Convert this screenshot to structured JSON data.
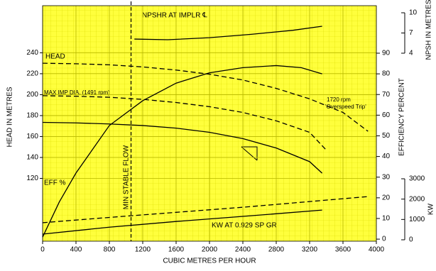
{
  "chart_data": {
    "type": "line",
    "x_label": "CUBIC METRES PER HOUR",
    "y_label": "HEAD IN METRES",
    "y2_label": "EFFICIENCY PERCENT",
    "y3_label": "NPSH IN METRES",
    "y4_label": "KW",
    "xlim": [
      0,
      4000
    ],
    "xticks": [
      0,
      400,
      800,
      1200,
      1600,
      2000,
      2400,
      2800,
      3200,
      3600,
      4000
    ],
    "ylim": [
      60,
      285
    ],
    "yticks": [
      120,
      140,
      160,
      180,
      200,
      220,
      240
    ],
    "y2lim": [
      -1,
      113
    ],
    "y2ticks": [
      0,
      10,
      20,
      30,
      40,
      50,
      60,
      70,
      80,
      90
    ],
    "y3lim": [
      4,
      10
    ],
    "y3ticks": [
      4,
      7,
      10
    ],
    "y4lim": [
      0,
      3000
    ],
    "y4ticks": [
      0,
      1000,
      2000,
      3000
    ],
    "grid": true,
    "background": "#ffff3c",
    "color": "#000000",
    "min_flow": {
      "x": 1060,
      "label": "MIN STABLE FLOW"
    },
    "annotations": {
      "head": "HEAD",
      "max_dia": "MAX IMP DIA. (1491 rpm)",
      "overspeed_1": "1720 rpm",
      "overspeed_2": "'Overspeed Trip'",
      "eff": "EFF %",
      "npshr": "NPSHR AT IMPLR ℄",
      "kw": "KW AT 0.929 SP GR"
    },
    "series": [
      {
        "name": "1720 rpm",
        "axis": "y",
        "dash": true,
        "x": [
          0,
          400,
          800,
          1200,
          1600,
          2000,
          2400,
          2800,
          3200,
          3600,
          3900
        ],
        "values": [
          230,
          229.5,
          228.5,
          226.5,
          223.5,
          219.5,
          214,
          206,
          196,
          183,
          165
        ]
      },
      {
        "name": "MAX IMP DIA",
        "axis": "y",
        "dash": true,
        "x": [
          0,
          400,
          800,
          1200,
          1600,
          2000,
          2400,
          2800,
          3200,
          3400
        ],
        "values": [
          199,
          198.5,
          197.5,
          195.5,
          192.5,
          188.5,
          183,
          175,
          164,
          147
        ]
      },
      {
        "name": "HEAD",
        "axis": "y",
        "dash": false,
        "x": [
          0,
          400,
          800,
          1200,
          1600,
          2000,
          2400,
          2800,
          3200,
          3350
        ],
        "values": [
          173.5,
          173,
          172,
          170.5,
          168,
          164,
          158,
          149,
          136,
          125
        ]
      },
      {
        "name": "EFF",
        "axis": "y2",
        "dash": false,
        "x": [
          0,
          200,
          400,
          800,
          1200,
          1600,
          2000,
          2400,
          2800,
          3100,
          3350
        ],
        "values": [
          1,
          18,
          32,
          55,
          67,
          75.5,
          80.5,
          83,
          84,
          83,
          80
        ]
      },
      {
        "name": "NPSHR",
        "axis": "y3",
        "dash": false,
        "x": [
          1100,
          1500,
          2000,
          2500,
          3000,
          3350
        ],
        "values": [
          6.1,
          6.0,
          6.3,
          6.8,
          7.4,
          8.0
        ]
      },
      {
        "name": "KW",
        "axis": "y4",
        "dash": false,
        "x": [
          0,
          800,
          1600,
          2400,
          3350
        ],
        "values": [
          280,
          620,
          900,
          1150,
          1460
        ]
      },
      {
        "name": "KW 1720",
        "axis": "y4",
        "dash": true,
        "x": [
          0,
          800,
          1600,
          2400,
          3200,
          3900
        ],
        "values": [
          840,
          1100,
          1350,
          1600,
          1880,
          2125
        ]
      }
    ]
  }
}
